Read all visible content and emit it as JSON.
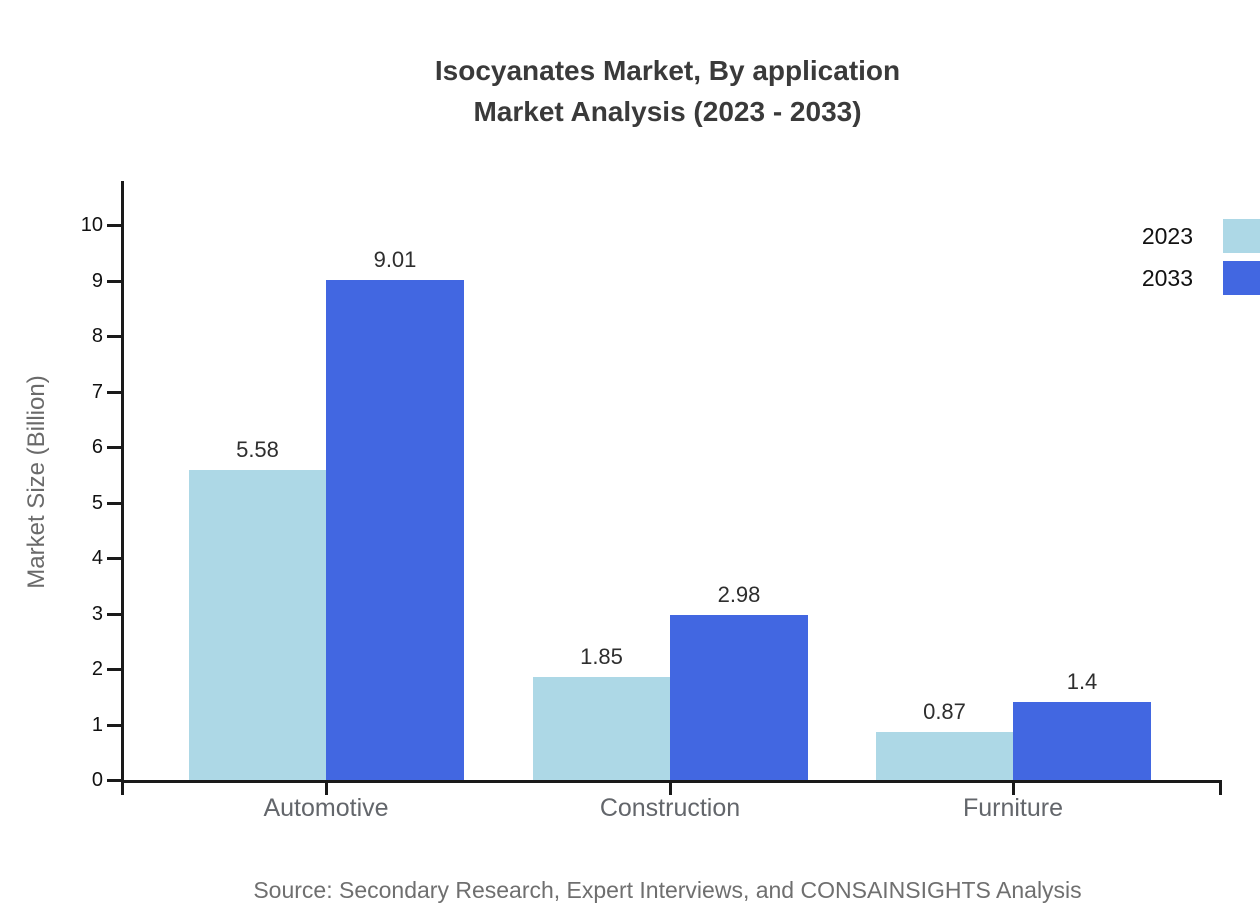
{
  "title": {
    "line1": "Isocyanates Market, By application",
    "line2": "Market Analysis (2023 - 2033)"
  },
  "source": "Source: Secondary Research, Expert Interviews, and CONSAINSIGHTS Analysis",
  "chart_data": {
    "type": "bar",
    "title": "Isocyanates Market, By application — Market Analysis (2023 - 2033)",
    "categories": [
      "Automotive",
      "Construction",
      "Furniture"
    ],
    "series": [
      {
        "name": "2023",
        "color": "#ADD8E6",
        "values": [
          5.58,
          1.85,
          0.87
        ],
        "labels": [
          "5.58",
          "1.85",
          "0.87"
        ]
      },
      {
        "name": "2033",
        "color": "#4267E1",
        "values": [
          9.01,
          2.98,
          1.4
        ],
        "labels": [
          "9.01",
          "2.98",
          "1.4"
        ]
      }
    ],
    "xlabel": "",
    "ylabel": "Market Size (Billion)",
    "ylim": [
      0,
      10
    ],
    "ytick_step": 1,
    "grid": false,
    "legend_position": "top-right",
    "colors": {
      "series_2023": "#ADD8E6",
      "series_2033": "#4267E1",
      "axis": "#1a1a1a",
      "title_text": "#3a3a3a",
      "category_text": "#63666b",
      "source_text": "#6f6f6f"
    }
  }
}
